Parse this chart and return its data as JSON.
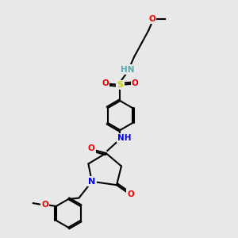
{
  "background_color": "#e8e8e8",
  "figsize": [
    3.0,
    3.0
  ],
  "dpi": 100,
  "atom_colors": {
    "C": "#000000",
    "H": "#5aabab",
    "N": "#0000ee",
    "O": "#ee0000",
    "S": "#cccc00"
  },
  "bond_color": "#000000",
  "bond_width": 1.5,
  "font_size": 7.5
}
